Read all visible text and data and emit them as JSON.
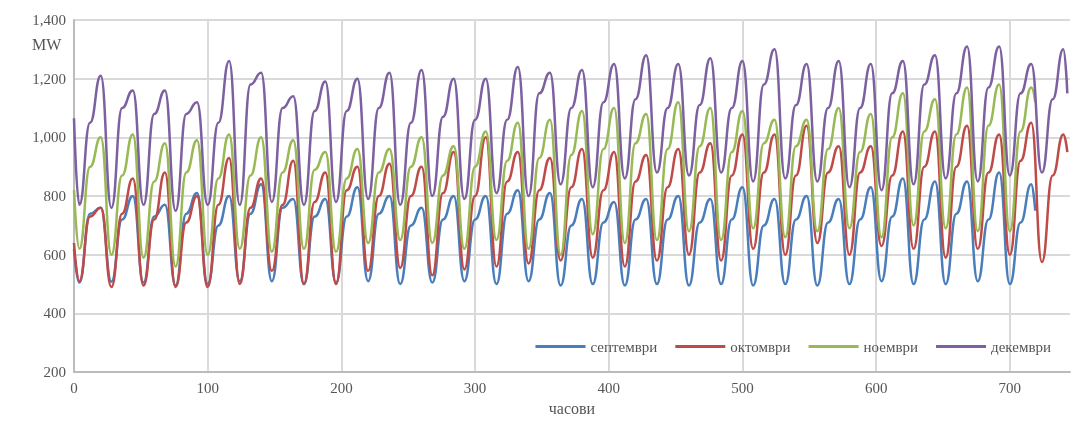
{
  "chart_data": {
    "type": "line",
    "xlabel": "часови",
    "ylabel": "MW",
    "xlim": [
      0,
      745
    ],
    "xticks": [
      0,
      100,
      200,
      300,
      400,
      500,
      600,
      700
    ],
    "ylim": [
      200,
      1400
    ],
    "yticks": [
      200,
      400,
      600,
      800,
      {
        "value": 1000,
        "label": "1,000"
      },
      {
        "value": 1200,
        "label": "1,200"
      },
      {
        "value": 1400,
        "label": "1,400"
      }
    ],
    "grid": true,
    "legend": "bottom right",
    "marker": "none",
    "line_style": "solid",
    "series": [
      {
        "name": "септември",
        "color": "#4a7ebb",
        "x": [
          0,
          4,
          12,
          20,
          28,
          36,
          44,
          52,
          60,
          68,
          76,
          84,
          92,
          100,
          108,
          116,
          124,
          132,
          140,
          148,
          156,
          164,
          172,
          180,
          188,
          196,
          204,
          212,
          220,
          228,
          236,
          244,
          252,
          260,
          268,
          276,
          284,
          292,
          300,
          308,
          316,
          324,
          332,
          340,
          348,
          356,
          364,
          372,
          380,
          388,
          396,
          404,
          412,
          420,
          428,
          436,
          444,
          452,
          460,
          468,
          476,
          484,
          492,
          500,
          508,
          516,
          524,
          532,
          540,
          548,
          556,
          564,
          572,
          580,
          588,
          596,
          604,
          612,
          620,
          628,
          636,
          644,
          652,
          660,
          668,
          676,
          684,
          692,
          700,
          708,
          716,
          719
        ],
        "values": [
          620,
          505,
          740,
          760,
          508,
          720,
          800,
          505,
          730,
          770,
          495,
          740,
          810,
          500,
          700,
          800,
          510,
          740,
          840,
          510,
          760,
          790,
          500,
          730,
          790,
          505,
          730,
          830,
          510,
          740,
          800,
          500,
          700,
          760,
          505,
          720,
          800,
          510,
          720,
          800,
          500,
          740,
          820,
          510,
          720,
          810,
          495,
          700,
          790,
          500,
          710,
          780,
          495,
          720,
          790,
          500,
          720,
          800,
          495,
          710,
          790,
          500,
          720,
          830,
          495,
          700,
          790,
          500,
          720,
          800,
          495,
          710,
          790,
          500,
          720,
          830,
          510,
          730,
          860,
          500,
          720,
          850,
          500,
          740,
          850,
          510,
          720,
          880,
          500,
          710,
          840,
          750
        ]
      },
      {
        "name": "октомври",
        "color": "#be4b48",
        "x": [
          0,
          4,
          12,
          20,
          28,
          36,
          44,
          52,
          60,
          68,
          76,
          84,
          92,
          100,
          108,
          116,
          124,
          132,
          140,
          148,
          156,
          164,
          172,
          180,
          188,
          196,
          204,
          212,
          220,
          228,
          236,
          244,
          252,
          260,
          268,
          276,
          284,
          292,
          300,
          308,
          316,
          324,
          332,
          340,
          348,
          356,
          364,
          372,
          380,
          388,
          396,
          404,
          412,
          420,
          428,
          436,
          444,
          452,
          460,
          468,
          476,
          484,
          492,
          500,
          508,
          516,
          524,
          532,
          540,
          548,
          556,
          564,
          572,
          580,
          588,
          596,
          604,
          612,
          620,
          628,
          636,
          644,
          652,
          660,
          668,
          676,
          684,
          692,
          700,
          708,
          716,
          724,
          732,
          740,
          743
        ],
        "values": [
          640,
          510,
          730,
          760,
          490,
          740,
          860,
          495,
          720,
          880,
          490,
          710,
          800,
          490,
          770,
          930,
          500,
          760,
          860,
          545,
          770,
          920,
          500,
          780,
          880,
          500,
          820,
          900,
          545,
          800,
          910,
          555,
          800,
          900,
          530,
          810,
          950,
          550,
          800,
          1000,
          560,
          850,
          950,
          570,
          820,
          930,
          580,
          830,
          960,
          590,
          820,
          950,
          560,
          850,
          940,
          580,
          830,
          960,
          600,
          880,
          980,
          580,
          870,
          1010,
          620,
          880,
          1010,
          600,
          870,
          1040,
          640,
          880,
          970,
          600,
          880,
          970,
          630,
          870,
          1020,
          620,
          900,
          1020,
          590,
          900,
          1040,
          620,
          880,
          1010,
          600,
          920,
          1050,
          575,
          870,
          1010,
          950
        ]
      },
      {
        "name": "ноември",
        "color": "#98b954",
        "x": [
          0,
          4,
          12,
          20,
          28,
          36,
          44,
          52,
          60,
          68,
          76,
          84,
          92,
          100,
          108,
          116,
          124,
          132,
          140,
          148,
          156,
          164,
          172,
          180,
          188,
          196,
          204,
          212,
          220,
          228,
          236,
          244,
          252,
          260,
          268,
          276,
          284,
          292,
          300,
          308,
          316,
          324,
          332,
          340,
          348,
          356,
          364,
          372,
          380,
          388,
          396,
          404,
          412,
          420,
          428,
          436,
          444,
          452,
          460,
          468,
          476,
          484,
          492,
          500,
          508,
          516,
          524,
          532,
          540,
          548,
          556,
          564,
          572,
          580,
          588,
          596,
          604,
          612,
          620,
          628,
          636,
          644,
          652,
          660,
          668,
          676,
          684,
          692,
          700,
          708,
          716,
          719
        ],
        "values": [
          820,
          620,
          900,
          1000,
          600,
          870,
          1010,
          590,
          850,
          980,
          560,
          880,
          990,
          600,
          860,
          1010,
          620,
          870,
          1000,
          610,
          880,
          990,
          620,
          890,
          950,
          610,
          860,
          960,
          640,
          880,
          960,
          650,
          900,
          1000,
          640,
          870,
          970,
          620,
          900,
          1020,
          650,
          920,
          1050,
          620,
          930,
          1060,
          600,
          940,
          1090,
          670,
          960,
          1100,
          640,
          980,
          1080,
          650,
          960,
          1120,
          680,
          970,
          1100,
          650,
          950,
          1090,
          690,
          980,
          1060,
          660,
          970,
          1060,
          680,
          960,
          1100,
          690,
          950,
          1080,
          660,
          1000,
          1150,
          700,
          1020,
          1130,
          690,
          1010,
          1170,
          680,
          1040,
          1180,
          680,
          1020,
          1170,
          1120
        ]
      },
      {
        "name": "декември",
        "color": "#7d60a0",
        "x": [
          0,
          4,
          12,
          20,
          28,
          36,
          44,
          52,
          60,
          68,
          76,
          84,
          92,
          100,
          108,
          116,
          124,
          132,
          140,
          148,
          156,
          164,
          172,
          180,
          188,
          196,
          204,
          212,
          220,
          228,
          236,
          244,
          252,
          260,
          268,
          276,
          284,
          292,
          300,
          308,
          316,
          324,
          332,
          340,
          348,
          356,
          364,
          372,
          380,
          388,
          396,
          404,
          412,
          420,
          428,
          436,
          444,
          452,
          460,
          468,
          476,
          484,
          492,
          500,
          508,
          516,
          524,
          532,
          540,
          548,
          556,
          564,
          572,
          580,
          588,
          596,
          604,
          612,
          620,
          628,
          636,
          644,
          652,
          660,
          668,
          676,
          684,
          692,
          700,
          708,
          716,
          724,
          732,
          740,
          743
        ],
        "values": [
          1065,
          770,
          1050,
          1210,
          760,
          1100,
          1160,
          770,
          1080,
          1160,
          750,
          1080,
          1120,
          770,
          1050,
          1260,
          770,
          1180,
          1220,
          780,
          1100,
          1140,
          770,
          1090,
          1190,
          780,
          1090,
          1200,
          790,
          1100,
          1220,
          770,
          1050,
          1230,
          800,
          1070,
          1200,
          790,
          1060,
          1200,
          810,
          1060,
          1240,
          800,
          1150,
          1220,
          840,
          1100,
          1230,
          830,
          1120,
          1250,
          860,
          1130,
          1280,
          880,
          1100,
          1250,
          870,
          1110,
          1270,
          880,
          1100,
          1260,
          850,
          1180,
          1300,
          860,
          1110,
          1250,
          850,
          1100,
          1260,
          830,
          1100,
          1250,
          820,
          1150,
          1260,
          840,
          1180,
          1280,
          860,
          1150,
          1310,
          850,
          1170,
          1310,
          870,
          1150,
          1250,
          880,
          1130,
          1300,
          1150
        ]
      }
    ]
  }
}
